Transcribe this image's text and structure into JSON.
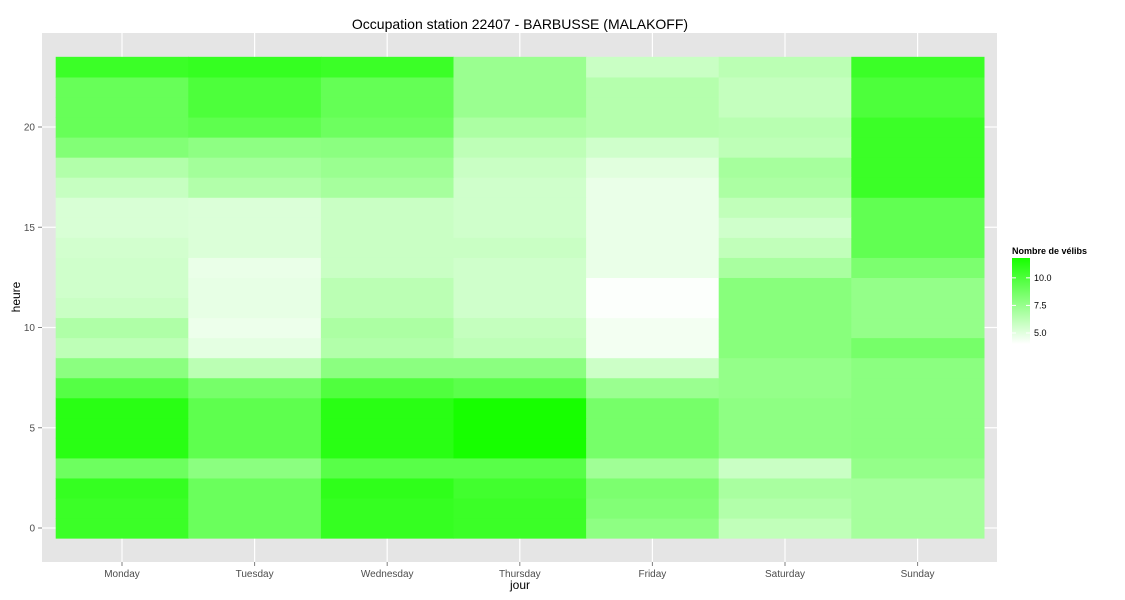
{
  "chart_data": {
    "type": "heatmap",
    "title": "Occupation station 22407 - BARBUSSE (MALAKOFF)",
    "xlabel": "jour",
    "ylabel": "heure",
    "categories": [
      "Monday",
      "Tuesday",
      "Wednesday",
      "Thursday",
      "Friday",
      "Saturday",
      "Sunday"
    ],
    "y": [
      0,
      1,
      2,
      3,
      4,
      5,
      6,
      7,
      8,
      9,
      10,
      11,
      12,
      13,
      14,
      15,
      16,
      17,
      18,
      19,
      20,
      21,
      22,
      23
    ],
    "y_ticks": [
      0,
      5,
      10,
      15,
      20
    ],
    "y_tick_labels": [
      "0",
      "5",
      "10",
      "15",
      "20"
    ],
    "ylim": [
      -1,
      24
    ],
    "grid": true,
    "values": [
      [
        10.6,
        9.0,
        10.8,
        10.6,
        7.8,
        6.1,
        7.0
      ],
      [
        10.6,
        9.0,
        10.8,
        10.6,
        8.2,
        6.6,
        7.0
      ],
      [
        10.8,
        9.0,
        11.0,
        10.4,
        8.4,
        6.9,
        7.0
      ],
      [
        8.9,
        7.9,
        9.6,
        9.6,
        7.2,
        5.8,
        7.6
      ],
      [
        11.2,
        9.4,
        11.2,
        11.8,
        8.6,
        7.8,
        7.9
      ],
      [
        11.2,
        9.4,
        11.2,
        11.8,
        8.6,
        7.8,
        7.9
      ],
      [
        11.2,
        9.4,
        11.2,
        11.8,
        8.6,
        7.8,
        7.9
      ],
      [
        9.7,
        8.6,
        9.9,
        9.5,
        7.4,
        7.6,
        7.9
      ],
      [
        7.9,
        6.3,
        7.9,
        7.9,
        5.7,
        7.6,
        7.9
      ],
      [
        6.2,
        4.9,
        6.6,
        6.2,
        4.4,
        8.0,
        8.6
      ],
      [
        6.7,
        4.6,
        6.8,
        6.0,
        4.4,
        8.0,
        7.6
      ],
      [
        5.8,
        4.8,
        6.3,
        5.6,
        4.1,
        8.0,
        7.6
      ],
      [
        5.6,
        4.8,
        6.3,
        5.6,
        4.1,
        8.0,
        7.6
      ],
      [
        5.6,
        4.7,
        5.8,
        5.6,
        4.7,
        6.9,
        8.4
      ],
      [
        5.5,
        5.2,
        5.8,
        5.8,
        4.7,
        6.1,
        9.3
      ],
      [
        5.3,
        5.2,
        5.8,
        5.6,
        4.7,
        5.6,
        9.3
      ],
      [
        5.3,
        5.2,
        5.8,
        5.6,
        4.7,
        6.1,
        9.3
      ],
      [
        5.9,
        6.6,
        7.0,
        5.6,
        4.7,
        6.8,
        10.6
      ],
      [
        6.6,
        7.1,
        7.4,
        5.8,
        5.0,
        7.0,
        10.6
      ],
      [
        8.2,
        7.8,
        7.9,
        6.2,
        5.6,
        6.2,
        10.6
      ],
      [
        9.1,
        9.4,
        8.9,
        6.8,
        6.5,
        6.4,
        10.6
      ],
      [
        9.1,
        10.0,
        9.2,
        7.4,
        6.5,
        6.0,
        10.0
      ],
      [
        9.1,
        10.0,
        9.2,
        7.4,
        6.5,
        6.0,
        10.0
      ],
      [
        10.6,
        10.8,
        10.6,
        7.4,
        5.8,
        6.3,
        10.6
      ]
    ],
    "legend": {
      "title": "Nombre de vélibs",
      "position": "right",
      "ticks": [
        5.0,
        7.5,
        10.0
      ],
      "tick_labels": [
        "5.0",
        "7.5",
        "10.0"
      ],
      "range": [
        4.0,
        11.8
      ],
      "low_color": "#ffffff",
      "high_color": "#17ff00"
    },
    "panel_bg": "#e5e5e5",
    "grid_color": "#ffffff"
  }
}
